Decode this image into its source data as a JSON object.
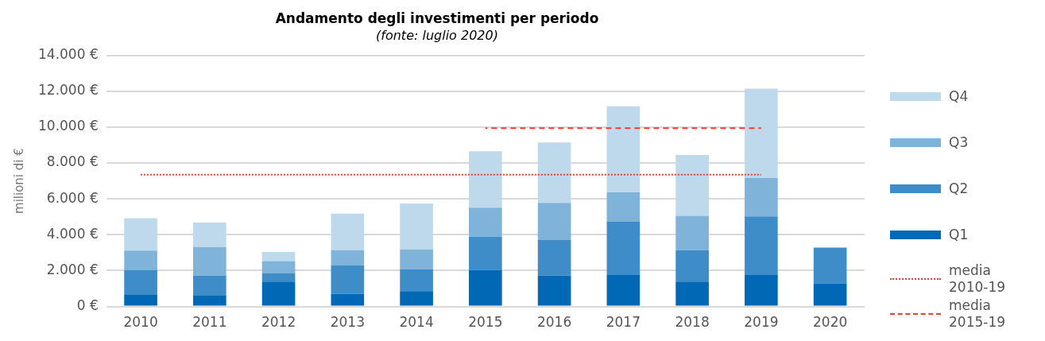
{
  "chart_data": {
    "type": "bar",
    "title": "Andamento degli investimenti per periodo",
    "subtitle": "(fonte: luglio 2020)",
    "ylabel": "milioni di €",
    "categories": [
      "2010",
      "2011",
      "2012",
      "2013",
      "2014",
      "2015",
      "2016",
      "2017",
      "2018",
      "2019",
      "2020"
    ],
    "stacked": true,
    "series": [
      {
        "name": "Q1",
        "color": "#0068b4",
        "values": [
          650,
          600,
          1390,
          700,
          860,
          2030,
          1720,
          1750,
          1390,
          1750,
          1280
        ]
      },
      {
        "name": "Q2",
        "color": "#3f8dc8",
        "values": [
          1380,
          1120,
          450,
          1590,
          1210,
          1860,
          2010,
          2990,
          1750,
          3270,
          2000
        ]
      },
      {
        "name": "Q3",
        "color": "#80b3da",
        "values": [
          1090,
          1600,
          690,
          850,
          1110,
          1620,
          2040,
          1630,
          1920,
          2140,
          null
        ]
      },
      {
        "name": "Q4",
        "color": "#bfd9ec",
        "values": [
          1800,
          1360,
          510,
          2040,
          2560,
          3150,
          3370,
          4790,
          3380,
          4980,
          null
        ]
      },
      {
        "name": "media 2010-19",
        "type": "line",
        "color": "#e8412c",
        "line_style": "dotted",
        "values": [
          7350,
          7350,
          7350,
          7350,
          7350,
          7350,
          7350,
          7350,
          7350,
          7350,
          null
        ]
      },
      {
        "name": "media 2015-19",
        "type": "line",
        "color": "#e8412c",
        "line_style": "dashed",
        "values": [
          null,
          null,
          null,
          null,
          null,
          9940,
          9940,
          9940,
          9940,
          9940,
          null
        ]
      }
    ],
    "ylim": [
      0,
      14000
    ],
    "yticks": [
      {
        "value": 0,
        "label": "0 €"
      },
      {
        "value": 2000,
        "label": "2.000 €"
      },
      {
        "value": 4000,
        "label": "4.000 €"
      },
      {
        "value": 6000,
        "label": "6.000 €"
      },
      {
        "value": 8000,
        "label": "8.000 €"
      },
      {
        "value": 10000,
        "label": "10.000 €"
      },
      {
        "value": 12000,
        "label": "12.000 €"
      },
      {
        "value": 14000,
        "label": "14.000 €"
      }
    ],
    "grid": "y",
    "legend": "right",
    "marker": "none"
  }
}
